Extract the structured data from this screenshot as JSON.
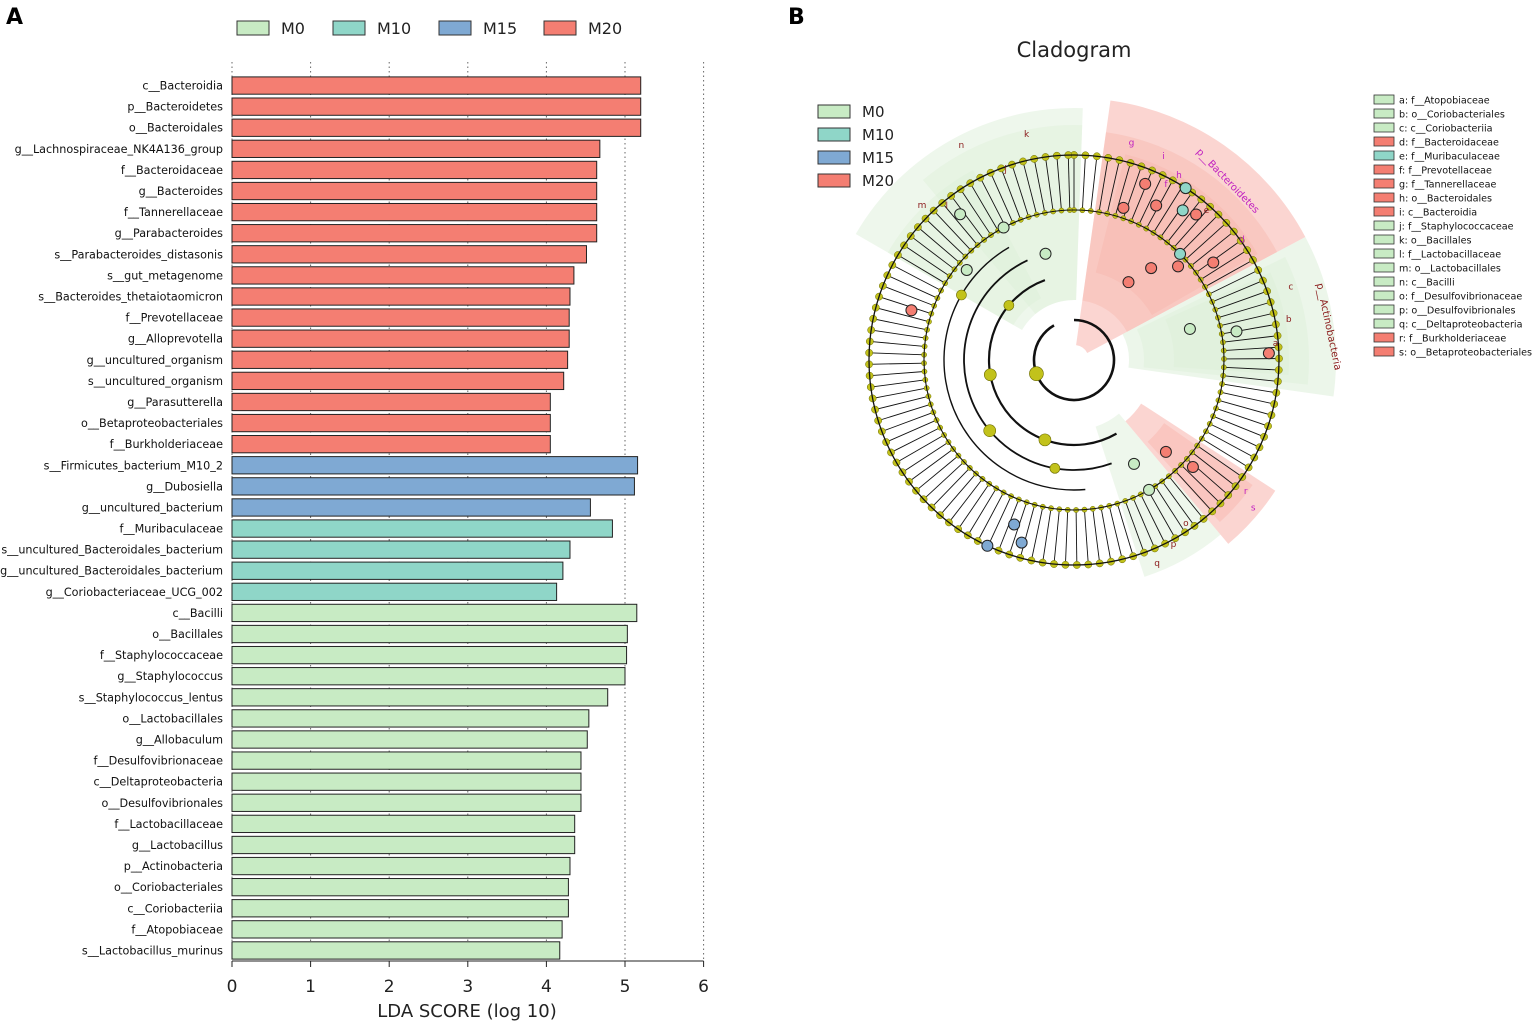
{
  "panels": {
    "a": "A",
    "b": "B"
  },
  "colors": {
    "M0": "#c8ebc4",
    "M10": "#8fd6c8",
    "M15": "#7fa9d3",
    "M20": "#f47e72",
    "node": "#c2c21b",
    "grid": "#666666"
  },
  "chart_data": [
    {
      "type": "bar",
      "orientation": "horizontal",
      "title": "",
      "xlabel": "LDA SCORE (log 10)",
      "ylabel": "",
      "xlim": [
        0,
        6
      ],
      "xticks": [
        "0",
        "1",
        "2",
        "3",
        "4",
        "5",
        "6"
      ],
      "grid": "vertical dotted",
      "legend": {
        "position": "top",
        "entries": [
          "M0",
          "M10",
          "M15",
          "M20"
        ]
      },
      "bars": [
        {
          "label": "c__Bacteroidia",
          "value": 5.2,
          "group": "M20"
        },
        {
          "label": "p__Bacteroidetes",
          "value": 5.2,
          "group": "M20"
        },
        {
          "label": "o__Bacteroidales",
          "value": 5.2,
          "group": "M20"
        },
        {
          "label": "g__Lachnospiraceae_NK4A136_group",
          "value": 4.68,
          "group": "M20"
        },
        {
          "label": "f__Bacteroidaceae",
          "value": 4.64,
          "group": "M20"
        },
        {
          "label": "g__Bacteroides",
          "value": 4.64,
          "group": "M20"
        },
        {
          "label": "f__Tannerellaceae",
          "value": 4.64,
          "group": "M20"
        },
        {
          "label": "g__Parabacteroides",
          "value": 4.64,
          "group": "M20"
        },
        {
          "label": "s__Parabacteroides_distasonis",
          "value": 4.51,
          "group": "M20"
        },
        {
          "label": "s__gut_metagenome",
          "value": 4.35,
          "group": "M20"
        },
        {
          "label": "s__Bacteroides_thetaiotaomicron",
          "value": 4.3,
          "group": "M20"
        },
        {
          "label": "f__Prevotellaceae",
          "value": 4.29,
          "group": "M20"
        },
        {
          "label": "g__Alloprevotella",
          "value": 4.29,
          "group": "M20"
        },
        {
          "label": "g__uncultured_organism",
          "value": 4.27,
          "group": "M20"
        },
        {
          "label": "s__uncultured_organism",
          "value": 4.22,
          "group": "M20"
        },
        {
          "label": "g__Parasutterella",
          "value": 4.05,
          "group": "M20"
        },
        {
          "label": "o__Betaproteobacteriales",
          "value": 4.05,
          "group": "M20"
        },
        {
          "label": "f__Burkholderiaceae",
          "value": 4.05,
          "group": "M20"
        },
        {
          "label": "s__Firmicutes_bacterium_M10_2",
          "value": 5.16,
          "group": "M15"
        },
        {
          "label": "g__Dubosiella",
          "value": 5.12,
          "group": "M15"
        },
        {
          "label": "g__uncultured_bacterium",
          "value": 4.56,
          "group": "M15"
        },
        {
          "label": "f__Muribaculaceae",
          "value": 4.84,
          "group": "M10"
        },
        {
          "label": "s__uncultured_Bacteroidales_bacterium",
          "value": 4.3,
          "group": "M10"
        },
        {
          "label": "g__uncultured_Bacteroidales_bacterium",
          "value": 4.21,
          "group": "M10"
        },
        {
          "label": "g__Coriobacteriaceae_UCG_002",
          "value": 4.13,
          "group": "M10"
        },
        {
          "label": "c__Bacilli",
          "value": 5.15,
          "group": "M0"
        },
        {
          "label": "o__Bacillales",
          "value": 5.03,
          "group": "M0"
        },
        {
          "label": "f__Staphylococcaceae",
          "value": 5.02,
          "group": "M0"
        },
        {
          "label": "g__Staphylococcus",
          "value": 5.0,
          "group": "M0"
        },
        {
          "label": "s__Staphylococcus_lentus",
          "value": 4.78,
          "group": "M0"
        },
        {
          "label": "o__Lactobacillales",
          "value": 4.54,
          "group": "M0"
        },
        {
          "label": "g__Allobaculum",
          "value": 4.52,
          "group": "M0"
        },
        {
          "label": "f__Desulfovibrionaceae",
          "value": 4.44,
          "group": "M0"
        },
        {
          "label": "c__Deltaproteobacteria",
          "value": 4.44,
          "group": "M0"
        },
        {
          "label": "o__Desulfovibrionales",
          "value": 4.44,
          "group": "M0"
        },
        {
          "label": "f__Lactobacillaceae",
          "value": 4.36,
          "group": "M0"
        },
        {
          "label": "g__Lactobacillus",
          "value": 4.36,
          "group": "M0"
        },
        {
          "label": "p__Actinobacteria",
          "value": 4.3,
          "group": "M0"
        },
        {
          "label": "o__Coriobacteriales",
          "value": 4.28,
          "group": "M0"
        },
        {
          "label": "c__Coriobacteriia",
          "value": 4.28,
          "group": "M0"
        },
        {
          "label": "f__Atopobiaceae",
          "value": 4.2,
          "group": "M0"
        },
        {
          "label": "s__Lactobacillus_murinus",
          "value": 4.17,
          "group": "M0"
        }
      ]
    },
    {
      "type": "cladogram",
      "title": "Cladogram",
      "legend": {
        "position": "upper-left",
        "entries": [
          "M0",
          "M10",
          "M15",
          "M20"
        ]
      },
      "clades": [
        {
          "label": "p__Bacteroidetes",
          "group": "M20"
        },
        {
          "label": "p__Actinobacteria",
          "group": "M0"
        }
      ],
      "taxa": [
        {
          "key": "a",
          "name": "f__Atopobiaceae",
          "group": "M0"
        },
        {
          "key": "b",
          "name": "o__Coriobacteriales",
          "group": "M0"
        },
        {
          "key": "c",
          "name": "c__Coriobacteriia",
          "group": "M0"
        },
        {
          "key": "d",
          "name": "f__Bacteroidaceae",
          "group": "M20"
        },
        {
          "key": "e",
          "name": "f__Muribaculaceae",
          "group": "M10"
        },
        {
          "key": "f",
          "name": "f__Prevotellaceae",
          "group": "M20"
        },
        {
          "key": "g",
          "name": "f__Tannerellaceae",
          "group": "M20"
        },
        {
          "key": "h",
          "name": "o__Bacteroidales",
          "group": "M20"
        },
        {
          "key": "i",
          "name": "c__Bacteroidia",
          "group": "M20"
        },
        {
          "key": "j",
          "name": "f__Staphylococcaceae",
          "group": "M0"
        },
        {
          "key": "k",
          "name": "o__Bacillales",
          "group": "M0"
        },
        {
          "key": "l",
          "name": "f__Lactobacillaceae",
          "group": "M0"
        },
        {
          "key": "m",
          "name": "o__Lactobacillales",
          "group": "M0"
        },
        {
          "key": "n",
          "name": "c__Bacilli",
          "group": "M0"
        },
        {
          "key": "o",
          "name": "f__Desulfovibrionaceae",
          "group": "M0"
        },
        {
          "key": "p",
          "name": "o__Desulfovibrionales",
          "group": "M0"
        },
        {
          "key": "q",
          "name": "c__Deltaproteobacteria",
          "group": "M0"
        },
        {
          "key": "r",
          "name": "f__Burkholderiaceae",
          "group": "M20"
        },
        {
          "key": "s",
          "name": "o__Betaproteobacteriales",
          "group": "M20"
        }
      ]
    }
  ]
}
